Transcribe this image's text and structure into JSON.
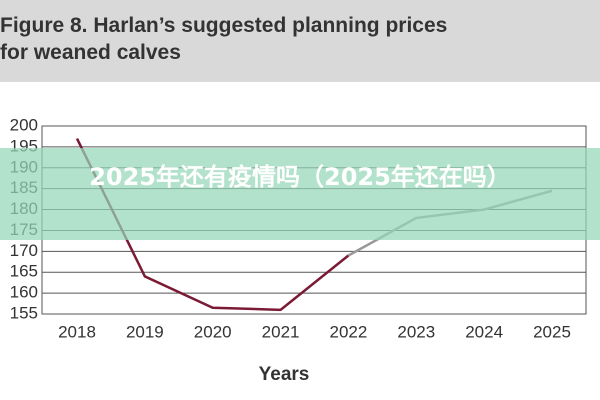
{
  "chart_data": {
    "type": "line",
    "title": "Figure 8. Harlan’s suggested planning prices for weaned calves",
    "xlabel": "Years",
    "categories": [
      "2018",
      "2019",
      "2020",
      "2021",
      "2022",
      "2023",
      "2024",
      "2025"
    ],
    "series": [
      {
        "color": "#7b1a34",
        "values": [
          197,
          164,
          156.5,
          156,
          169,
          null,
          null,
          null
        ]
      },
      {
        "color": "#999999",
        "values": [
          null,
          null,
          null,
          null,
          169,
          178,
          180,
          184.5
        ]
      }
    ],
    "ylim": [
      155,
      200
    ],
    "yticks": [
      155,
      160,
      165,
      170,
      175,
      180,
      185,
      190,
      195,
      200
    ],
    "grid": true
  },
  "overlay": {
    "text": "2025年还有疫情吗（2025年还在吗）"
  }
}
